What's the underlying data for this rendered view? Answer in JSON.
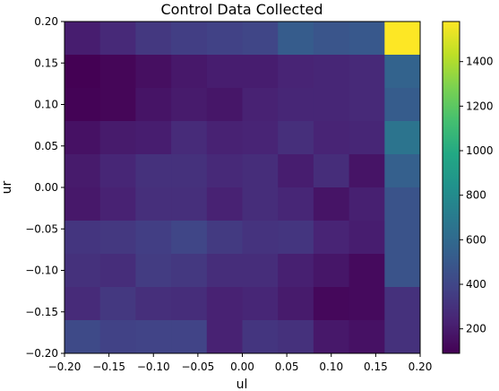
{
  "chart_data": {
    "type": "heatmap",
    "title": "Control Data Collected",
    "xlabel": "ul",
    "ylabel": "ur",
    "xlim": [
      -0.2,
      0.2
    ],
    "ylim": [
      -0.2,
      0.2
    ],
    "x_ticks": [
      "−0.20",
      "−0.15",
      "−0.10",
      "−0.05",
      "0.00",
      "0.05",
      "0.10",
      "0.15",
      "0.20"
    ],
    "y_ticks": [
      "−0.20",
      "−0.15",
      "−0.10",
      "−0.05",
      "0.00",
      "0.05",
      "0.10",
      "0.15",
      "0.20"
    ],
    "grid": false,
    "colormap": "viridis",
    "colorbar": {
      "range": [
        90,
        1580
      ],
      "ticks": [
        "200",
        "400",
        "600",
        "800",
        "1000",
        "1200",
        "1400"
      ],
      "tick_values": [
        200,
        400,
        600,
        800,
        1000,
        1200,
        1400
      ]
    },
    "rows_top_to_bottom": [
      [
        210,
        260,
        330,
        360,
        380,
        400,
        520,
        480,
        500,
        1580
      ],
      [
        90,
        110,
        150,
        190,
        210,
        210,
        240,
        250,
        260,
        560
      ],
      [
        100,
        110,
        170,
        200,
        180,
        230,
        250,
        250,
        260,
        520
      ],
      [
        160,
        200,
        210,
        270,
        230,
        240,
        290,
        240,
        250,
        660
      ],
      [
        200,
        250,
        300,
        300,
        260,
        280,
        210,
        280,
        170,
        540
      ],
      [
        190,
        230,
        290,
        290,
        230,
        280,
        250,
        170,
        220,
        470
      ],
      [
        320,
        330,
        360,
        400,
        340,
        310,
        320,
        240,
        210,
        470
      ],
      [
        300,
        280,
        350,
        330,
        280,
        280,
        220,
        180,
        130,
        470
      ],
      [
        270,
        330,
        290,
        280,
        230,
        250,
        200,
        120,
        130,
        300
      ],
      [
        420,
        380,
        390,
        390,
        230,
        320,
        300,
        190,
        160,
        300
      ]
    ]
  }
}
